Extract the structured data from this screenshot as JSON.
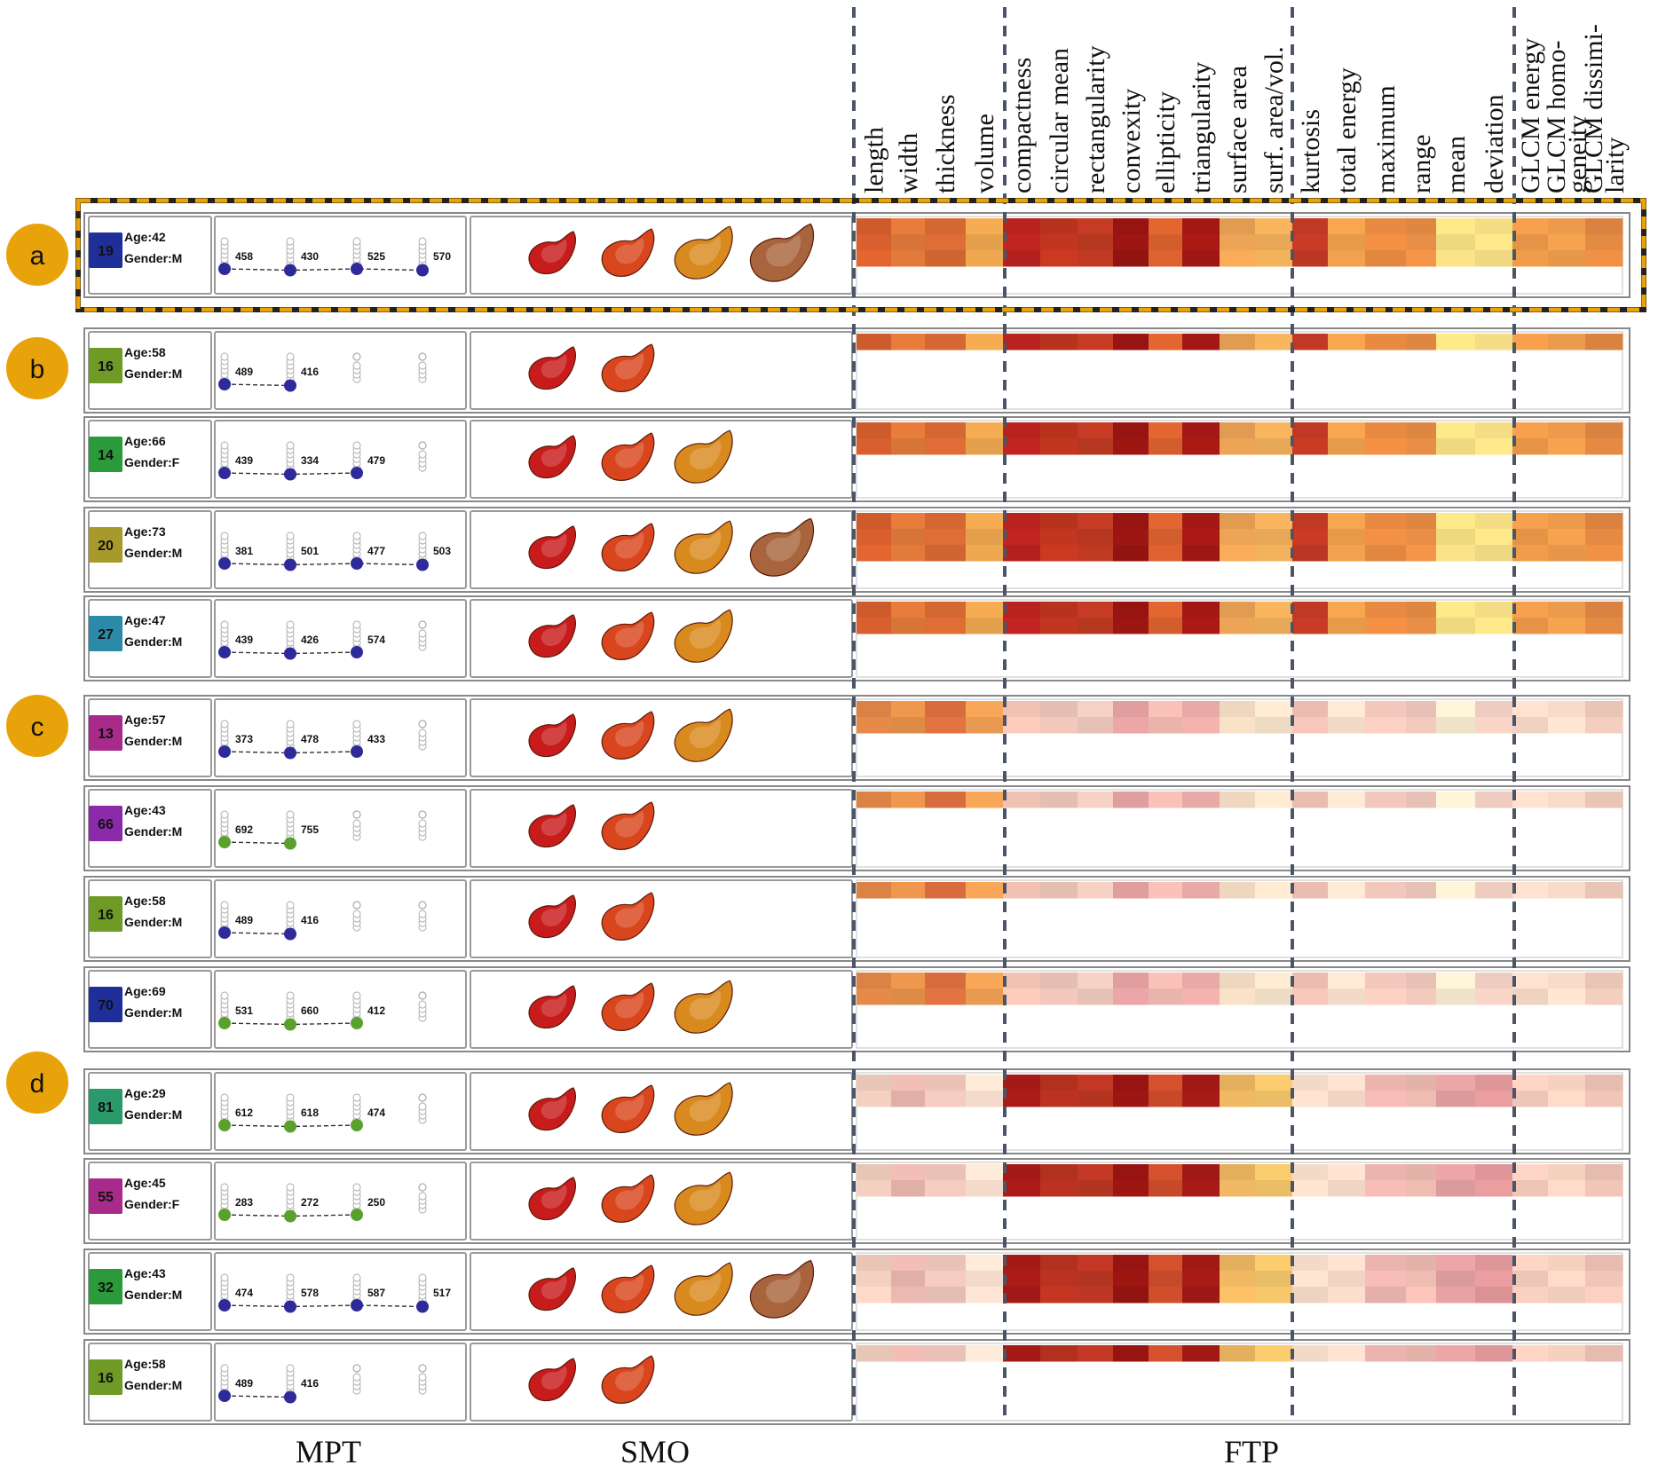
{
  "columns": [
    "length",
    "width",
    "thickness",
    "volume",
    "compactness",
    "circular mean",
    "rectangularity",
    "convexity",
    "ellipticity",
    "triangularity",
    "surface area",
    "surf. area/vol.",
    "kurtosis",
    "total energy",
    "maximum",
    "range",
    "mean",
    "deviation",
    "GLCM energy",
    "GLCM homo-\ngeneity",
    "GLCM dissimi-\nlarity"
  ],
  "footers": {
    "mpt": "MPT",
    "smo": "SMO",
    "ftp": "FTP"
  },
  "groups": [
    {
      "label": "a",
      "rows": [
        0
      ]
    },
    {
      "label": "b",
      "rows": [
        1,
        2,
        3,
        4
      ]
    },
    {
      "label": "c",
      "rows": [
        5,
        6,
        7,
        8
      ]
    },
    {
      "label": "d",
      "rows": [
        9,
        10,
        11,
        12
      ]
    }
  ],
  "colors": {
    "accent": "#e8a20a",
    "dash": "#4a5568",
    "blueDot": "#2e2a9a",
    "greenDot": "#5aa02c"
  },
  "rows": [
    {
      "id": "19",
      "color": "#1f2f9a",
      "age": "Age:42",
      "gender": "Gender:M",
      "mpt": {
        "values": [
          458,
          430,
          525,
          570
        ],
        "n": 4,
        "dot": "blue"
      },
      "smo": 4,
      "ftp": {
        "lines": 3,
        "scheme": "deep"
      }
    },
    {
      "id": "16",
      "color": "#6f9a26",
      "age": "Age:58",
      "gender": "Gender:M",
      "mpt": {
        "values": [
          489,
          416
        ],
        "n": 2,
        "dot": "blue"
      },
      "smo": 2,
      "ftp": {
        "lines": 1,
        "scheme": "deep"
      }
    },
    {
      "id": "14",
      "color": "#2a9a3a",
      "age": "Age:66",
      "gender": "Gender:F",
      "mpt": {
        "values": [
          439,
          334,
          479
        ],
        "n": 3,
        "dot": "blue"
      },
      "smo": 3,
      "ftp": {
        "lines": 2,
        "scheme": "deep"
      }
    },
    {
      "id": "20",
      "color": "#a89a2a",
      "age": "Age:73",
      "gender": "Gender:M",
      "mpt": {
        "values": [
          381,
          501,
          477,
          503
        ],
        "n": 4,
        "dot": "blue"
      },
      "smo": 4,
      "ftp": {
        "lines": 3,
        "scheme": "deep"
      }
    },
    {
      "id": "27",
      "color": "#2a8aa8",
      "age": "Age:47",
      "gender": "Gender:M",
      "mpt": {
        "values": [
          439,
          426,
          574
        ],
        "n": 3,
        "dot": "blue"
      },
      "smo": 3,
      "ftp": {
        "lines": 2,
        "scheme": "deep"
      }
    },
    {
      "id": "13",
      "color": "#a82a8a",
      "age": "Age:57",
      "gender": "Gender:M",
      "mpt": {
        "values": [
          373,
          478,
          433
        ],
        "n": 3,
        "dot": "blue"
      },
      "smo": 3,
      "ftp": {
        "lines": 2,
        "scheme": "paleC"
      }
    },
    {
      "id": "66",
      "color": "#8a2aa8",
      "age": "Age:43",
      "gender": "Gender:M",
      "mpt": {
        "values": [
          692,
          755
        ],
        "n": 2,
        "dot": "green"
      },
      "smo": 2,
      "ftp": {
        "lines": 1,
        "scheme": "paleC"
      }
    },
    {
      "id": "16",
      "color": "#6f9a26",
      "age": "Age:58",
      "gender": "Gender:M",
      "mpt": {
        "values": [
          489,
          416
        ],
        "n": 2,
        "dot": "blue"
      },
      "smo": 2,
      "ftp": {
        "lines": 1,
        "scheme": "paleC"
      }
    },
    {
      "id": "70",
      "color": "#1f2f9a",
      "age": "Age:69",
      "gender": "Gender:M",
      "mpt": {
        "values": [
          531,
          660,
          412
        ],
        "n": 3,
        "dot": "green"
      },
      "smo": 3,
      "ftp": {
        "lines": 2,
        "scheme": "paleC"
      }
    },
    {
      "id": "81",
      "color": "#2a9a6a",
      "age": "Age:29",
      "gender": "Gender:M",
      "mpt": {
        "values": [
          612,
          618,
          474
        ],
        "n": 3,
        "dot": "green"
      },
      "smo": 3,
      "ftp": {
        "lines": 2,
        "scheme": "paleD"
      }
    },
    {
      "id": "55",
      "color": "#a82a8a",
      "age": "Age:45",
      "gender": "Gender:F",
      "mpt": {
        "values": [
          283,
          272,
          250
        ],
        "n": 3,
        "dot": "green"
      },
      "smo": 3,
      "ftp": {
        "lines": 2,
        "scheme": "paleD"
      }
    },
    {
      "id": "32",
      "color": "#2a9a3a",
      "age": "Age:43",
      "gender": "Gender:M",
      "mpt": {
        "values": [
          474,
          578,
          587,
          517
        ],
        "n": 4,
        "dot": "blue"
      },
      "smo": 4,
      "ftp": {
        "lines": 3,
        "scheme": "paleD"
      }
    },
    {
      "id": "16",
      "color": "#6f9a26",
      "age": "Age:58",
      "gender": "Gender:M",
      "mpt": {
        "values": [
          489,
          416
        ],
        "n": 2,
        "dot": "blue"
      },
      "smo": 2,
      "ftp": {
        "lines": 1,
        "scheme": "paleD"
      }
    }
  ]
}
